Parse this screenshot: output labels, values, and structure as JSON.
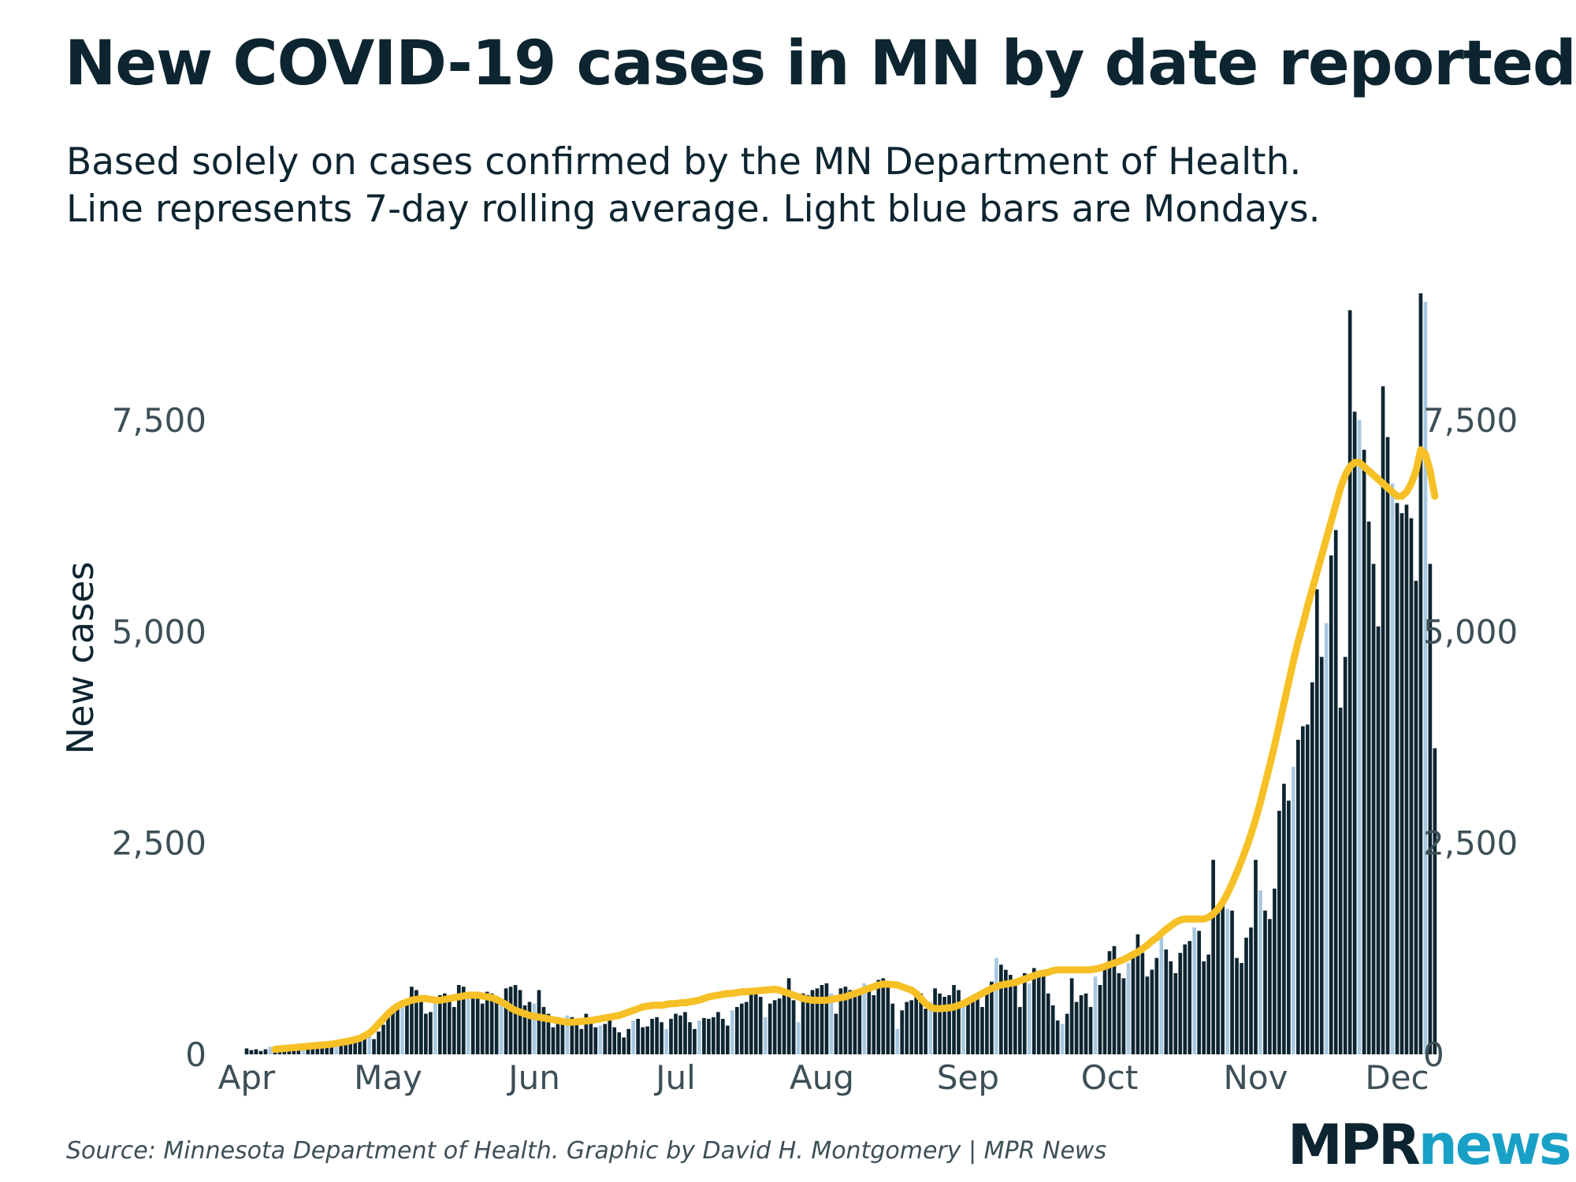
{
  "title": "New COVID-19 cases in MN by date reported",
  "subtitle_line1": "Based solely on cases confirmed by the MN Department of Health.",
  "subtitle_line2": "Line represents 7-day rolling average. Light blue bars are Mondays.",
  "source": "Source: Minnesota Department of Health. Graphic by David H. Montgomery | MPR News",
  "logo": {
    "part1": "MPR",
    "part2": "news"
  },
  "colors": {
    "bar": "#0d2530",
    "monday_bar": "#a8c8e0",
    "line": "#f6c026",
    "text": "#0d2530",
    "tick": "#3d4f57",
    "logo_news": "#18a0c7"
  },
  "chart_data": {
    "type": "bar",
    "ylabel": "New cases",
    "ylim": [
      0,
      9300
    ],
    "y_ticks": [
      0,
      2500,
      5000,
      7500
    ],
    "y_tick_labels": [
      "0",
      "2,500",
      "5,000",
      "7,500"
    ],
    "x_tick_labels": [
      {
        "label": "Apr",
        "day": 0
      },
      {
        "label": "May",
        "day": 30
      },
      {
        "label": "Jun",
        "day": 61
      },
      {
        "label": "Jul",
        "day": 91
      },
      {
        "label": "Aug",
        "day": 122
      },
      {
        "label": "Sep",
        "day": 153
      },
      {
        "label": "Oct",
        "day": 183
      },
      {
        "label": "Nov",
        "day": 214
      },
      {
        "label": "Dec",
        "day": 244
      }
    ],
    "start_date": "Apr 1",
    "monday_offset": 5,
    "series": [
      {
        "name": "New cases",
        "values": [
          70,
          50,
          60,
          40,
          60,
          90,
          80,
          60,
          80,
          70,
          80,
          90,
          100,
          120,
          110,
          90,
          120,
          100,
          140,
          110,
          130,
          140,
          160,
          190,
          200,
          220,
          240,
          180,
          270,
          350,
          480,
          520,
          600,
          560,
          620,
          800,
          760,
          640,
          480,
          500,
          620,
          700,
          720,
          660,
          560,
          820,
          800,
          720,
          680,
          660,
          600,
          740,
          720,
          680,
          640,
          780,
          800,
          820,
          760,
          580,
          620,
          600,
          760,
          560,
          480,
          320,
          360,
          400,
          460,
          440,
          380,
          300,
          480,
          380,
          320,
          340,
          360,
          420,
          320,
          260,
          200,
          300,
          400,
          420,
          320,
          330,
          420,
          440,
          380,
          300,
          420,
          480,
          460,
          500,
          380,
          300,
          400,
          430,
          420,
          440,
          500,
          420,
          340,
          520,
          560,
          600,
          620,
          780,
          760,
          680,
          440,
          600,
          640,
          660,
          700,
          900,
          640,
          380,
          720,
          700,
          760,
          780,
          820,
          840,
          720,
          480,
          780,
          800,
          760,
          700,
          720,
          840,
          780,
          700,
          880,
          900,
          820,
          600,
          300,
          520,
          620,
          640,
          700,
          720,
          540,
          620,
          780,
          720,
          680,
          700,
          820,
          760,
          560,
          600,
          680,
          660,
          560,
          720,
          860,
          1140,
          1060,
          1000,
          940,
          880,
          560,
          960,
          840,
          1020,
          980,
          940,
          720,
          580,
          400,
          360,
          480,
          900,
          620,
          700,
          720,
          560,
          920,
          820,
          1060,
          1220,
          1280,
          960,
          900,
          1080,
          1200,
          1420,
          1200,
          920,
          1000,
          1140,
          1380,
          1240,
          1100,
          960,
          1200,
          1300,
          1340,
          1500,
          1460,
          1100,
          1180,
          2300,
          1700,
          1760,
          1720,
          1700,
          1140,
          1080,
          1380,
          1500,
          2300,
          1940,
          1700,
          1600,
          1960,
          2880,
          3200,
          3000,
          3400,
          3720,
          3880,
          3900,
          4400,
          5500,
          4700,
          5100,
          5900,
          6200,
          4100,
          4700,
          8800,
          7600,
          7500,
          7150,
          6300,
          5800,
          5060,
          7900,
          7300,
          6750,
          6520,
          6400,
          6500,
          6340,
          5600,
          9000,
          8900,
          5800,
          3620
        ],
        "color": "#0d2530",
        "monday_color": "#a8c8e0"
      },
      {
        "name": "7-day rolling average",
        "values": [
          60,
          65,
          70,
          75,
          80,
          85,
          90,
          95,
          100,
          105,
          110,
          115,
          120,
          130,
          140,
          150,
          160,
          175,
          190,
          220,
          250,
          300,
          360,
          420,
          480,
          530,
          570,
          600,
          620,
          640,
          650,
          660,
          660,
          650,
          640,
          640,
          650,
          660,
          670,
          680,
          690,
          700,
          700,
          700,
          690,
          680,
          670,
          650,
          620,
          590,
          550,
          520,
          500,
          480,
          460,
          450,
          440,
          430,
          420,
          410,
          400,
          390,
          380,
          380,
          385,
          390,
          395,
          400,
          410,
          420,
          430,
          440,
          450,
          460,
          480,
          500,
          520,
          540,
          560,
          570,
          580,
          580,
          580,
          590,
          600,
          600,
          610,
          610,
          620,
          630,
          640,
          660,
          680,
          690,
          700,
          710,
          720,
          720,
          730,
          740,
          740,
          745,
          750,
          755,
          760,
          765,
          770,
          760,
          740,
          720,
          700,
          680,
          660,
          650,
          640,
          640,
          640,
          640,
          650,
          660,
          670,
          680,
          700,
          720,
          740,
          760,
          780,
          800,
          820,
          830,
          830,
          825,
          820,
          800,
          780,
          760,
          720,
          660,
          600,
          560,
          540,
          540,
          545,
          550,
          560,
          580,
          600,
          630,
          660,
          690,
          720,
          750,
          780,
          800,
          820,
          830,
          840,
          850,
          870,
          890,
          910,
          930,
          950,
          960,
          970,
          990,
          1000,
          1000,
          1000,
          1000,
          1000,
          1000,
          1000,
          1000,
          1010,
          1020,
          1040,
          1060,
          1080,
          1100,
          1120,
          1150,
          1180,
          1210,
          1250,
          1290,
          1340,
          1380,
          1430,
          1480,
          1520,
          1560,
          1590,
          1600,
          1600,
          1600,
          1600,
          1600,
          1620,
          1660,
          1720,
          1800,
          1900,
          2020,
          2150,
          2290,
          2440,
          2600,
          2780,
          2980,
          3200,
          3420,
          3650,
          3900,
          4150,
          4400,
          4650,
          4880,
          5080,
          5300,
          5500,
          5700,
          5900,
          6100,
          6300,
          6500,
          6700,
          6850,
          6950,
          7000,
          7000,
          6950,
          6900,
          6850,
          6800,
          6750,
          6700,
          6650,
          6600,
          6600,
          6650,
          6750,
          6900,
          7150,
          7100,
          6900,
          6600
        ]
      }
    ]
  }
}
